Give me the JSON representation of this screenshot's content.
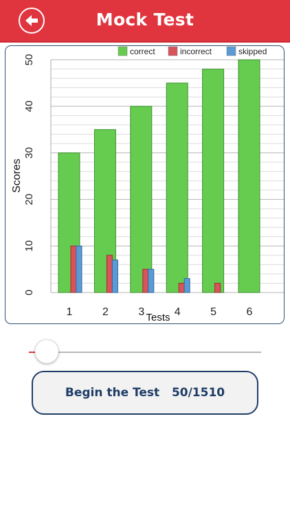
{
  "header": {
    "title": "Mock Test",
    "back_icon": "back-arrow-icon",
    "background": "#e0353f"
  },
  "chart_data": {
    "type": "bar",
    "categories": [
      "1",
      "2",
      "3",
      "4",
      "5",
      "6"
    ],
    "series": [
      {
        "name": "correct",
        "color": "#66cc4f",
        "values": [
          30,
          35,
          40,
          45,
          48,
          50
        ]
      },
      {
        "name": "incorrect",
        "color": "#d9545a",
        "values": [
          10,
          8,
          5,
          2,
          2,
          0
        ]
      },
      {
        "name": "skipped",
        "color": "#5b9bd5",
        "values": [
          10,
          7,
          5,
          3,
          0,
          0
        ]
      }
    ],
    "xlabel": "Tests",
    "ylabel": "Scores",
    "ylim": [
      0,
      50
    ],
    "yticks": [
      0,
      10,
      20,
      30,
      40,
      50
    ],
    "grid": true,
    "legend": "top-right"
  },
  "slider": {
    "value": 0.08,
    "fill_color": "#e0353f"
  },
  "begin_button": {
    "label": "Begin the Test",
    "progress": "50/1510"
  }
}
